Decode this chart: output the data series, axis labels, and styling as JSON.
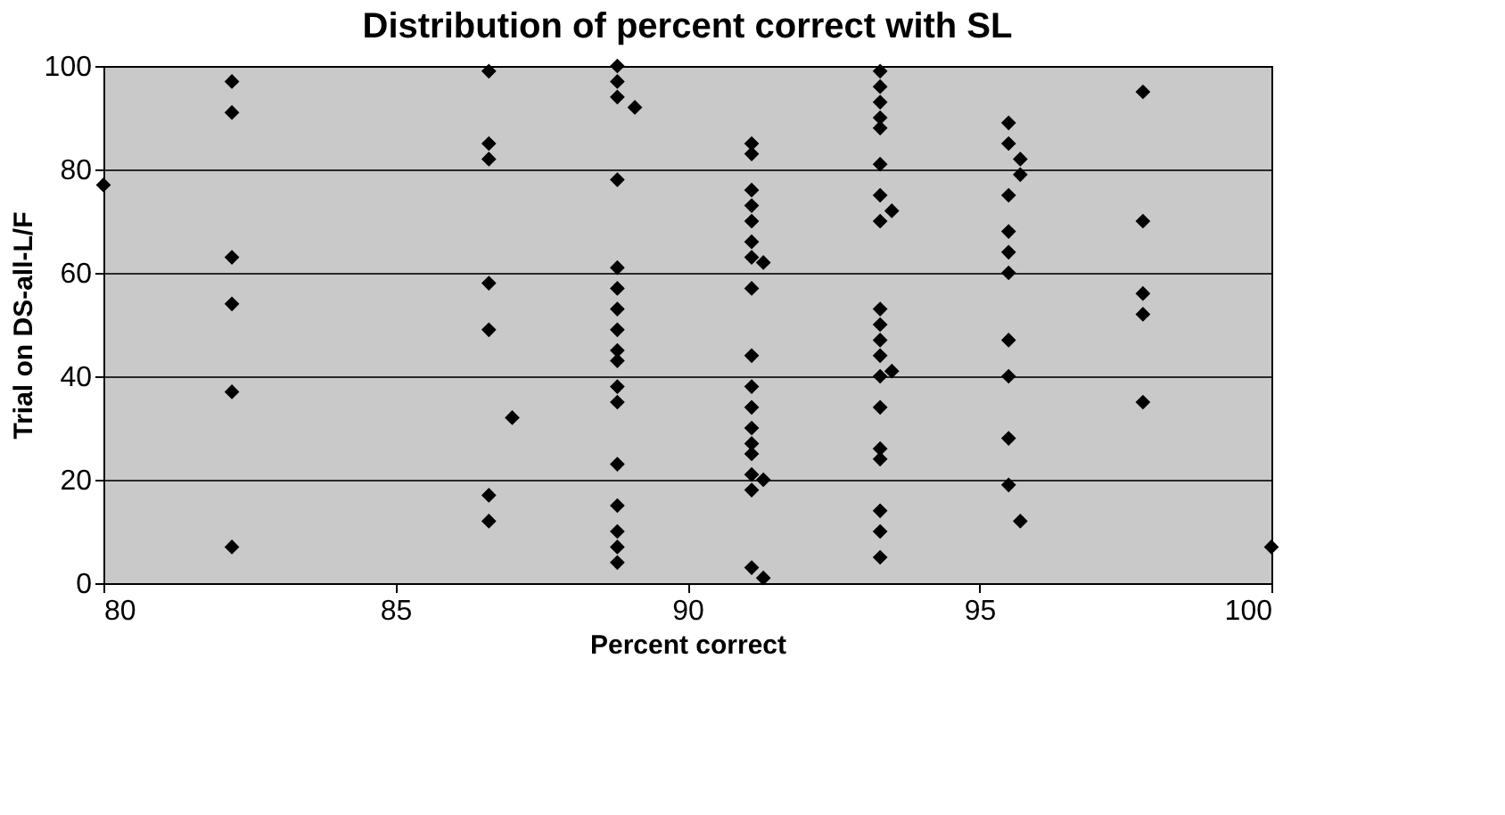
{
  "chart_data": {
    "type": "scatter",
    "title": "Distribution of percent correct with SL",
    "xlabel": "Percent correct",
    "ylabel": "Trial on DS-all-L/F",
    "xlim": [
      80,
      100
    ],
    "xticks": [
      80,
      85,
      90,
      95,
      100
    ],
    "ylim": [
      0,
      100
    ],
    "yticks": [
      0,
      20,
      40,
      60,
      80,
      100
    ],
    "grid": "y",
    "marker": "diamond",
    "legend": false,
    "series": [
      {
        "color": "#000000",
        "x": [
          80,
          82.2,
          82.2,
          82.2,
          82.2,
          82.2,
          82.2,
          86.6,
          86.6,
          86.6,
          86.6,
          86.6,
          86.6,
          86.6,
          87.0,
          88.8,
          88.8,
          88.8,
          88.8,
          88.8,
          88.8,
          88.8,
          88.8,
          88.8,
          88.8,
          88.8,
          88.8,
          88.8,
          88.8,
          88.8,
          88.8,
          88.8,
          89.1,
          91.1,
          91.1,
          91.1,
          91.1,
          91.1,
          91.1,
          91.1,
          91.1,
          91.1,
          91.1,
          91.1,
          91.1,
          91.1,
          91.1,
          91.1,
          91.1,
          91.1,
          91.3,
          91.3,
          91.3,
          93.3,
          93.3,
          93.3,
          93.3,
          93.3,
          93.3,
          93.3,
          93.3,
          93.3,
          93.3,
          93.3,
          93.3,
          93.3,
          93.3,
          93.3,
          93.3,
          93.3,
          93.3,
          93.3,
          93.5,
          93.5,
          95.5,
          95.5,
          95.5,
          95.5,
          95.5,
          95.5,
          95.5,
          95.5,
          95.5,
          95.5,
          95.7,
          95.7,
          95.7,
          97.8,
          97.8,
          97.8,
          97.8,
          97.8,
          100
        ],
        "values": [
          77,
          97,
          91,
          63,
          54,
          37,
          7,
          99,
          85,
          82,
          58,
          49,
          17,
          12,
          32,
          100,
          97,
          94,
          78,
          61,
          57,
          53,
          49,
          45,
          43,
          38,
          35,
          23,
          15,
          10,
          7,
          4,
          92,
          85,
          83,
          76,
          73,
          70,
          66,
          63,
          57,
          44,
          38,
          34,
          30,
          27,
          25,
          21,
          18,
          3,
          62,
          20,
          1,
          99,
          96,
          93,
          90,
          88,
          81,
          75,
          70,
          53,
          50,
          47,
          44,
          40,
          34,
          26,
          24,
          14,
          10,
          5,
          72,
          41,
          89,
          85,
          75,
          68,
          64,
          60,
          47,
          40,
          28,
          19,
          82,
          79,
          12,
          95,
          70,
          56,
          52,
          35,
          7
        ]
      }
    ]
  }
}
